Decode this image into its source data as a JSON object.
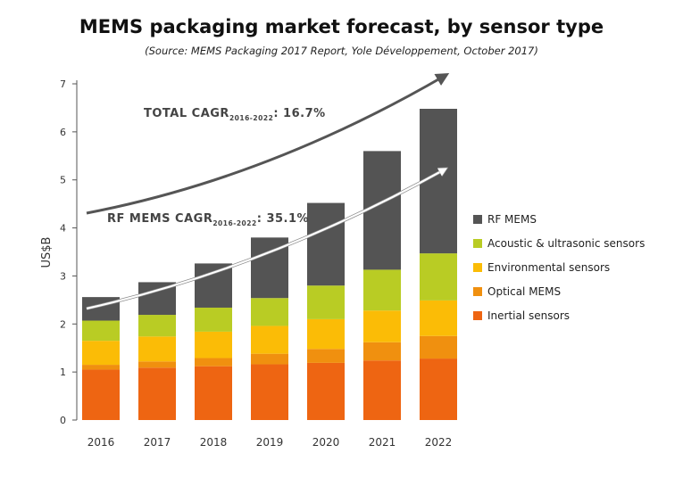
{
  "chart_data": {
    "type": "bar",
    "stacked": true,
    "title": "MEMS packaging market forecast, by sensor type",
    "subtitle": "(Source: MEMS Packaging 2017 Report, Yole Développement, October 2017)",
    "ylabel": "US$B",
    "xlabel": "",
    "ylim": [
      0,
      7
    ],
    "yticks": [
      0,
      1,
      2,
      3,
      4,
      5,
      6,
      7
    ],
    "categories": [
      "2016",
      "2017",
      "2018",
      "2019",
      "2020",
      "2021",
      "2022"
    ],
    "series": [
      {
        "name": "Inertial sensors",
        "color": "#ee6512",
        "values": [
          1.05,
          1.09,
          1.12,
          1.16,
          1.19,
          1.24,
          1.28
        ]
      },
      {
        "name": "Optical MEMS",
        "color": "#f0900f",
        "values": [
          0.1,
          0.13,
          0.17,
          0.22,
          0.29,
          0.38,
          0.47
        ]
      },
      {
        "name": "Environmental sensors",
        "color": "#fbbc06",
        "values": [
          0.5,
          0.52,
          0.55,
          0.58,
          0.62,
          0.66,
          0.74
        ]
      },
      {
        "name": "Acoustic & ultrasonic sensors",
        "color": "#b9cc24",
        "values": [
          0.42,
          0.45,
          0.5,
          0.58,
          0.7,
          0.85,
          0.98
        ]
      },
      {
        "name": "RF MEMS",
        "color": "#545454",
        "values": [
          0.49,
          0.68,
          0.92,
          1.26,
          1.72,
          2.47,
          3.01
        ]
      }
    ],
    "legend_position": "right",
    "legend_order": [
      "RF MEMS",
      "Acoustic & ultrasonic sensors",
      "Environmental sensors",
      "Optical MEMS",
      "Inertial sensors"
    ],
    "grid": false,
    "annotations": [
      {
        "id": "total",
        "main": "TOTAL CAGR",
        "sub": "2016-2022",
        "tail": ": 16.7%",
        "arrow_color": "#555555"
      },
      {
        "id": "rf",
        "main": "RF MEMS CAGR",
        "sub": "2016-2022",
        "tail": ": 35.1%",
        "arrow_color": "#ffffff"
      }
    ]
  }
}
